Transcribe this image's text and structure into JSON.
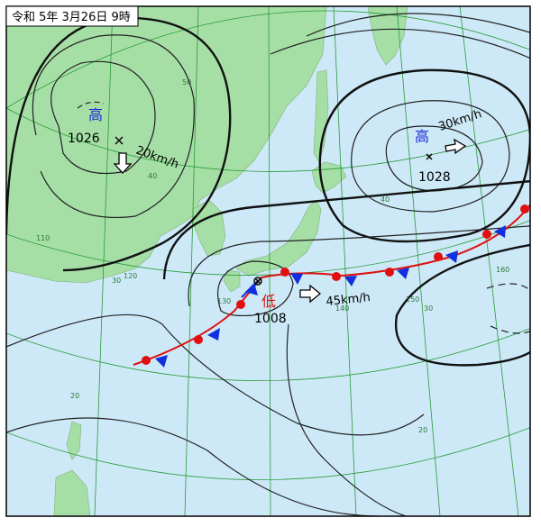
{
  "header": {
    "title": "令和 5年 3月26日 9時"
  },
  "systems": [
    {
      "kind": "高",
      "pressure": 1026,
      "speed": "20km/h"
    },
    {
      "kind": "高",
      "pressure": 1028,
      "speed": "30km/h"
    },
    {
      "kind": "低",
      "pressure": 1008,
      "speed": "45km/h"
    }
  ],
  "grid_labels": [
    "50",
    "40",
    "30",
    "20",
    "110",
    "120",
    "130",
    "140",
    "150",
    "160",
    "40",
    "30",
    "20"
  ]
}
